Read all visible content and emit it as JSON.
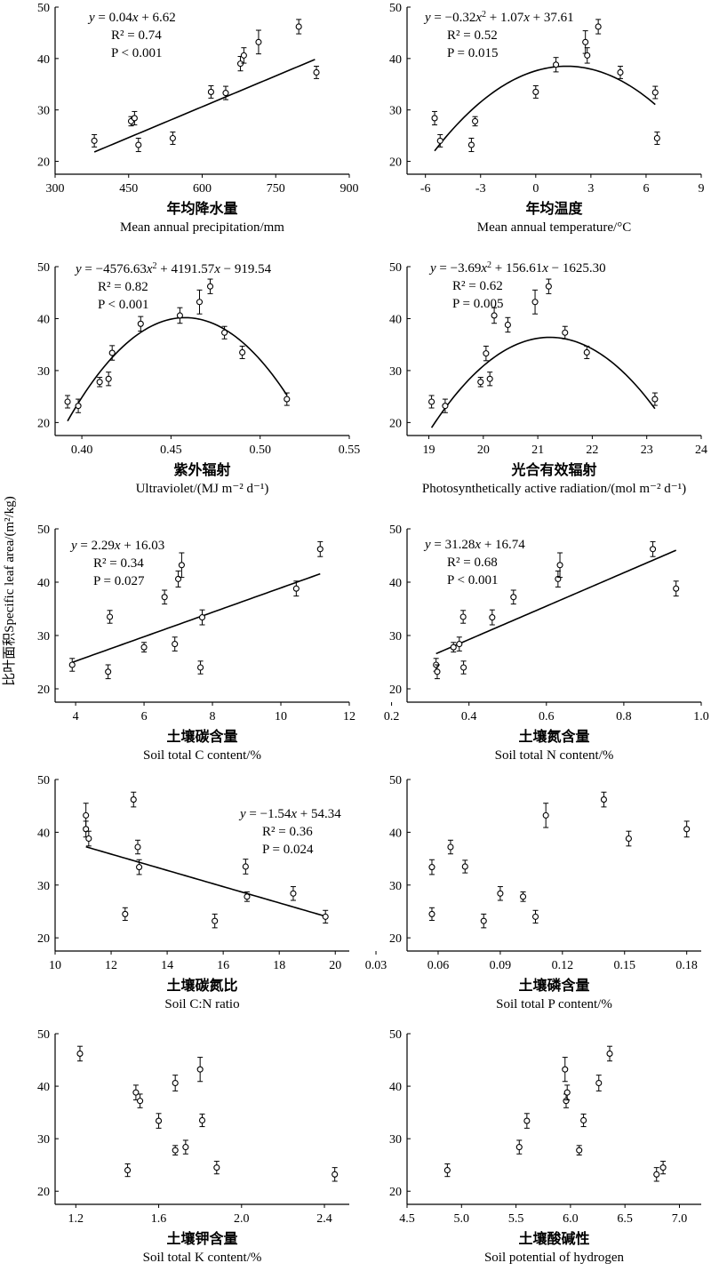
{
  "figure": {
    "ylabel": "比叶面积Specific leaf area/(m²/kg)"
  },
  "chart_data": [
    {
      "type": "scatter",
      "xlabel_zh": "年均降水量",
      "xlabel_en": "Mean annual precipitation/mm",
      "xticks": [
        "300",
        "450",
        "600",
        "750",
        "900"
      ],
      "yticks": [
        "20",
        "30",
        "40",
        "50"
      ],
      "xlim": [
        300,
        900
      ],
      "ylim": [
        17.5,
        50
      ],
      "points": [
        {
          "x": 380,
          "y": 24.0,
          "err": 1.2
        },
        {
          "x": 455,
          "y": 27.8,
          "err": 0.9
        },
        {
          "x": 462,
          "y": 28.4,
          "err": 1.3
        },
        {
          "x": 470,
          "y": 23.2,
          "err": 1.3
        },
        {
          "x": 540,
          "y": 24.5,
          "err": 1.2
        },
        {
          "x": 618,
          "y": 33.5,
          "err": 1.2
        },
        {
          "x": 648,
          "y": 33.3,
          "err": 1.3
        },
        {
          "x": 678,
          "y": 39.0,
          "err": 1.4
        },
        {
          "x": 685,
          "y": 40.6,
          "err": 1.5
        },
        {
          "x": 715,
          "y": 43.2,
          "err": 2.3
        },
        {
          "x": 797,
          "y": 46.2,
          "err": 1.4
        },
        {
          "x": 833,
          "y": 37.3,
          "err": 1.2
        }
      ],
      "fit": {
        "type": "linear",
        "coef": [
          0.04,
          6.62
        ],
        "x_range": [
          380,
          830
        ]
      },
      "annotation": {
        "eq": "y = 0.04x + 6.62",
        "r2": "R² = 0.74",
        "p": "P < 0.001",
        "eq_parts": [
          [
            "",
            "y"
          ],
          [
            " = 0.04",
            ""
          ],
          [
            "",
            "x"
          ],
          [
            " + 6.62",
            ""
          ]
        ]
      }
    },
    {
      "type": "scatter",
      "xlabel_zh": "年均温度",
      "xlabel_en": "Mean annual temperature/°C",
      "xticks": [
        "-6",
        "-3",
        "0",
        "3",
        "6",
        "9"
      ],
      "yticks": [
        "20",
        "30",
        "40",
        "50"
      ],
      "xlim": [
        -7,
        9
      ],
      "ylim": [
        17.5,
        50
      ],
      "points": [
        {
          "x": -5.5,
          "y": 28.4,
          "err": 1.3
        },
        {
          "x": -5.2,
          "y": 24.0,
          "err": 1.2
        },
        {
          "x": -3.5,
          "y": 23.2,
          "err": 1.3
        },
        {
          "x": -3.3,
          "y": 27.8,
          "err": 0.9
        },
        {
          "x": 0.0,
          "y": 33.5,
          "err": 1.2
        },
        {
          "x": 1.1,
          "y": 38.8,
          "err": 1.4
        },
        {
          "x": 2.7,
          "y": 43.2,
          "err": 2.2
        },
        {
          "x": 2.8,
          "y": 40.6,
          "err": 1.5
        },
        {
          "x": 3.4,
          "y": 46.2,
          "err": 1.4
        },
        {
          "x": 4.6,
          "y": 37.3,
          "err": 1.2
        },
        {
          "x": 6.5,
          "y": 33.4,
          "err": 1.2
        },
        {
          "x": 6.6,
          "y": 24.5,
          "err": 1.2
        }
      ],
      "fit": {
        "type": "quadratic",
        "coef": [
          -0.32,
          1.07,
          37.61
        ],
        "x_range": [
          -5.5,
          6.5
        ]
      },
      "annotation": {
        "eq": "y = −0.32x² + 1.07x + 37.61",
        "r2": "R² = 0.52",
        "p": "P = 0.015",
        "eq_parts": [
          [
            "",
            "y"
          ],
          [
            " = −0.32",
            ""
          ],
          [
            "",
            "x"
          ],
          [
            "²",
            ""
          ],
          [
            " + 1.07",
            ""
          ],
          [
            "",
            "x"
          ],
          [
            " + 37.61",
            ""
          ]
        ]
      }
    },
    {
      "type": "scatter",
      "xlabel_zh": "紫外辐射",
      "xlabel_en": "Ultraviolet/(MJ m⁻² d⁻¹)",
      "xticks": [
        "0.40",
        "0.45",
        "0.50",
        "0.55"
      ],
      "yticks": [
        "20",
        "30",
        "40",
        "50"
      ],
      "xlim": [
        0.385,
        0.55
      ],
      "ylim": [
        17.5,
        50
      ],
      "points": [
        {
          "x": 0.392,
          "y": 24.0,
          "err": 1.2
        },
        {
          "x": 0.398,
          "y": 23.2,
          "err": 1.3
        },
        {
          "x": 0.41,
          "y": 27.8,
          "err": 0.9
        },
        {
          "x": 0.415,
          "y": 28.4,
          "err": 1.3
        },
        {
          "x": 0.417,
          "y": 33.4,
          "err": 1.4
        },
        {
          "x": 0.433,
          "y": 39.0,
          "err": 1.4
        },
        {
          "x": 0.455,
          "y": 40.6,
          "err": 1.5
        },
        {
          "x": 0.466,
          "y": 43.2,
          "err": 2.3
        },
        {
          "x": 0.472,
          "y": 46.2,
          "err": 1.4
        },
        {
          "x": 0.48,
          "y": 37.3,
          "err": 1.2
        },
        {
          "x": 0.49,
          "y": 33.5,
          "err": 1.2
        },
        {
          "x": 0.515,
          "y": 24.5,
          "err": 1.2
        }
      ],
      "fit": {
        "type": "quadratic",
        "coef": [
          -4576.63,
          4191.57,
          -919.54
        ],
        "x_range": [
          0.392,
          0.515
        ]
      },
      "annotation": {
        "eq": "y = −4576.63x² + 4191.57x − 919.54",
        "r2": "R² = 0.82",
        "p": "P < 0.001",
        "eq_parts": [
          [
            "",
            "y"
          ],
          [
            " = −4576.63",
            ""
          ],
          [
            "",
            "x"
          ],
          [
            "²",
            ""
          ],
          [
            " + 4191.57",
            ""
          ],
          [
            "",
            "x"
          ],
          [
            " − 919.54",
            ""
          ]
        ]
      }
    },
    {
      "type": "scatter",
      "xlabel_zh": "光合有效辐射",
      "xlabel_en": "Photosynthetically active radiation/(mol m⁻² d⁻¹)",
      "xticks": [
        "19",
        "20",
        "21",
        "22",
        "23",
        "24"
      ],
      "yticks": [
        "20",
        "30",
        "40",
        "50"
      ],
      "xlim": [
        18.6,
        24
      ],
      "ylim": [
        17.5,
        50
      ],
      "points": [
        {
          "x": 19.05,
          "y": 24.0,
          "err": 1.2
        },
        {
          "x": 19.3,
          "y": 23.2,
          "err": 1.3
        },
        {
          "x": 19.95,
          "y": 27.8,
          "err": 0.9
        },
        {
          "x": 20.05,
          "y": 33.3,
          "err": 1.4
        },
        {
          "x": 20.12,
          "y": 28.4,
          "err": 1.3
        },
        {
          "x": 20.2,
          "y": 40.6,
          "err": 1.5
        },
        {
          "x": 20.45,
          "y": 38.8,
          "err": 1.4
        },
        {
          "x": 20.95,
          "y": 43.2,
          "err": 2.3
        },
        {
          "x": 21.2,
          "y": 46.2,
          "err": 1.4
        },
        {
          "x": 21.5,
          "y": 37.3,
          "err": 1.2
        },
        {
          "x": 21.9,
          "y": 33.5,
          "err": 1.2
        },
        {
          "x": 23.15,
          "y": 24.5,
          "err": 1.2
        }
      ],
      "fit": {
        "type": "quadratic",
        "coef": [
          -3.69,
          156.61,
          -1625.3
        ],
        "x_range": [
          19.05,
          23.15
        ]
      },
      "annotation": {
        "eq": "y = −3.69x² + 156.61x − 1625.30",
        "r2": "R² = 0.62",
        "p": "P = 0.005",
        "eq_parts": [
          [
            "",
            "y"
          ],
          [
            " = −3.69",
            ""
          ],
          [
            "",
            "x"
          ],
          [
            "²",
            ""
          ],
          [
            " + 156.61",
            ""
          ],
          [
            "",
            "x"
          ],
          [
            " − 1625.30",
            ""
          ]
        ]
      }
    },
    {
      "type": "scatter",
      "xlabel_zh": "土壤碳含量",
      "xlabel_en": "Soil total C content/%",
      "xticks": [
        "4",
        "6",
        "8",
        "10",
        "12"
      ],
      "yticks": [
        "20",
        "30",
        "40",
        "50"
      ],
      "xlim": [
        3.4,
        12
      ],
      "ylim": [
        17.5,
        50
      ],
      "points": [
        {
          "x": 3.9,
          "y": 24.5,
          "err": 1.2
        },
        {
          "x": 4.95,
          "y": 23.2,
          "err": 1.3
        },
        {
          "x": 5.0,
          "y": 33.5,
          "err": 1.2
        },
        {
          "x": 6.0,
          "y": 27.8,
          "err": 0.9
        },
        {
          "x": 6.6,
          "y": 37.2,
          "err": 1.3
        },
        {
          "x": 6.9,
          "y": 28.4,
          "err": 1.3
        },
        {
          "x": 7.0,
          "y": 40.6,
          "err": 1.5
        },
        {
          "x": 7.1,
          "y": 43.2,
          "err": 2.3
        },
        {
          "x": 7.65,
          "y": 24.0,
          "err": 1.2
        },
        {
          "x": 7.7,
          "y": 33.4,
          "err": 1.4
        },
        {
          "x": 10.45,
          "y": 38.8,
          "err": 1.4
        },
        {
          "x": 11.15,
          "y": 46.2,
          "err": 1.4
        }
      ],
      "fit": {
        "type": "linear",
        "coef": [
          2.29,
          16.03
        ],
        "x_range": [
          3.9,
          11.15
        ]
      },
      "annotation": {
        "eq": "y = 2.29x + 16.03",
        "r2": "R² = 0.34",
        "p": "P = 0.027",
        "eq_parts": [
          [
            "",
            "y"
          ],
          [
            " = 2.29",
            ""
          ],
          [
            "",
            "x"
          ],
          [
            " + 16.03",
            ""
          ]
        ]
      }
    },
    {
      "type": "scatter",
      "xlabel_zh": "土壤氮含量",
      "xlabel_en": "Soil total N content/%",
      "xticks": [
        "0.2",
        "0.4",
        "0.6",
        "0.8",
        "1.0"
      ],
      "yticks": [
        "20",
        "30",
        "40",
        "50"
      ],
      "xlim": [
        0.24,
        1.0
      ],
      "ylim": [
        17.5,
        50
      ],
      "points": [
        {
          "x": 0.315,
          "y": 24.5,
          "err": 1.2
        },
        {
          "x": 0.318,
          "y": 23.2,
          "err": 1.3
        },
        {
          "x": 0.36,
          "y": 27.8,
          "err": 0.9
        },
        {
          "x": 0.375,
          "y": 28.4,
          "err": 1.3
        },
        {
          "x": 0.385,
          "y": 33.5,
          "err": 1.2
        },
        {
          "x": 0.386,
          "y": 24.0,
          "err": 1.2
        },
        {
          "x": 0.46,
          "y": 33.4,
          "err": 1.4
        },
        {
          "x": 0.515,
          "y": 37.2,
          "err": 1.3
        },
        {
          "x": 0.63,
          "y": 40.6,
          "err": 1.5
        },
        {
          "x": 0.635,
          "y": 43.2,
          "err": 2.3
        },
        {
          "x": 0.875,
          "y": 46.2,
          "err": 1.4
        },
        {
          "x": 0.935,
          "y": 38.8,
          "err": 1.4
        }
      ],
      "fit": {
        "type": "linear",
        "coef": [
          31.28,
          16.74
        ],
        "x_range": [
          0.315,
          0.935
        ]
      },
      "annotation": {
        "eq": "y = 31.28x + 16.74",
        "r2": "R² = 0.68",
        "p": "P < 0.001",
        "eq_parts": [
          [
            "",
            "y"
          ],
          [
            " = 31.28",
            ""
          ],
          [
            "",
            "x"
          ],
          [
            " + 16.74",
            ""
          ]
        ]
      }
    },
    {
      "type": "scatter",
      "xlabel_zh": "土壤碳氮比",
      "xlabel_en": "Soil C:N ratio",
      "xticks": [
        "10",
        "12",
        "14",
        "16",
        "18",
        "20"
      ],
      "yticks": [
        "20",
        "30",
        "40",
        "50"
      ],
      "xlim": [
        10,
        20.5
      ],
      "ylim": [
        17.5,
        50
      ],
      "points": [
        {
          "x": 11.1,
          "y": 43.2,
          "err": 2.3
        },
        {
          "x": 11.1,
          "y": 40.6,
          "err": 1.5
        },
        {
          "x": 11.2,
          "y": 38.8,
          "err": 1.4
        },
        {
          "x": 12.5,
          "y": 24.5,
          "err": 1.2
        },
        {
          "x": 12.8,
          "y": 46.2,
          "err": 1.4
        },
        {
          "x": 12.95,
          "y": 37.2,
          "err": 1.3
        },
        {
          "x": 13.0,
          "y": 33.4,
          "err": 1.4
        },
        {
          "x": 15.7,
          "y": 23.2,
          "err": 1.3
        },
        {
          "x": 16.8,
          "y": 33.5,
          "err": 1.4
        },
        {
          "x": 16.85,
          "y": 27.8,
          "err": 0.9
        },
        {
          "x": 18.5,
          "y": 28.4,
          "err": 1.3
        },
        {
          "x": 19.65,
          "y": 24.0,
          "err": 1.2
        }
      ],
      "fit": {
        "type": "linear",
        "coef": [
          -1.54,
          54.34
        ],
        "x_range": [
          11.1,
          19.65
        ]
      },
      "annotation": {
        "eq": "y = −1.54x + 54.34",
        "r2": "R² = 0.36",
        "p": "P = 0.024",
        "eq_parts": [
          [
            "",
            "y"
          ],
          [
            " = −1.54",
            ""
          ],
          [
            "",
            "x"
          ],
          [
            " + 54.34",
            ""
          ]
        ]
      }
    },
    {
      "type": "scatter",
      "xlabel_zh": "土壤磷含量",
      "xlabel_en": "Soil total P content/%",
      "xticks": [
        "0.03",
        "0.06",
        "0.09",
        "0.12",
        "0.15",
        "0.18"
      ],
      "yticks": [
        "20",
        "30",
        "40",
        "50"
      ],
      "xlim": [
        0.045,
        0.187
      ],
      "ylim": [
        17.5,
        50
      ],
      "points": [
        {
          "x": 0.057,
          "y": 33.4,
          "err": 1.4
        },
        {
          "x": 0.057,
          "y": 24.5,
          "err": 1.2
        },
        {
          "x": 0.066,
          "y": 37.2,
          "err": 1.3
        },
        {
          "x": 0.073,
          "y": 33.5,
          "err": 1.2
        },
        {
          "x": 0.082,
          "y": 23.2,
          "err": 1.3
        },
        {
          "x": 0.09,
          "y": 28.4,
          "err": 1.3
        },
        {
          "x": 0.101,
          "y": 27.8,
          "err": 0.9
        },
        {
          "x": 0.107,
          "y": 24.0,
          "err": 1.2
        },
        {
          "x": 0.112,
          "y": 43.2,
          "err": 2.3
        },
        {
          "x": 0.14,
          "y": 46.2,
          "err": 1.4
        },
        {
          "x": 0.152,
          "y": 38.8,
          "err": 1.4
        },
        {
          "x": 0.18,
          "y": 40.6,
          "err": 1.5
        }
      ],
      "fit": null,
      "annotation": null
    },
    {
      "type": "scatter",
      "xlabel_zh": "土壤钾含量",
      "xlabel_en": "Soil total K content/%",
      "xticks": [
        "1.2",
        "1.6",
        "2.0",
        "2.4"
      ],
      "yticks": [
        "20",
        "30",
        "40",
        "50"
      ],
      "xlim": [
        1.1,
        2.52
      ],
      "ylim": [
        17.5,
        50
      ],
      "points": [
        {
          "x": 1.22,
          "y": 46.2,
          "err": 1.4
        },
        {
          "x": 1.45,
          "y": 24.0,
          "err": 1.2
        },
        {
          "x": 1.49,
          "y": 38.8,
          "err": 1.4
        },
        {
          "x": 1.51,
          "y": 37.2,
          "err": 1.3
        },
        {
          "x": 1.6,
          "y": 33.4,
          "err": 1.4
        },
        {
          "x": 1.68,
          "y": 40.6,
          "err": 1.5
        },
        {
          "x": 1.68,
          "y": 27.8,
          "err": 0.9
        },
        {
          "x": 1.73,
          "y": 28.4,
          "err": 1.3
        },
        {
          "x": 1.8,
          "y": 43.2,
          "err": 2.3
        },
        {
          "x": 1.81,
          "y": 33.5,
          "err": 1.2
        },
        {
          "x": 1.88,
          "y": 24.5,
          "err": 1.2
        },
        {
          "x": 2.45,
          "y": 23.2,
          "err": 1.3
        }
      ],
      "fit": null,
      "annotation": null
    },
    {
      "type": "scatter",
      "xlabel_zh": "土壤酸碱性",
      "xlabel_en": "Soil potential of hydrogen",
      "xticks": [
        "4.5",
        "5.0",
        "5.5",
        "6.0",
        "6.5",
        "7.0"
      ],
      "yticks": [
        "20",
        "30",
        "40",
        "50"
      ],
      "xlim": [
        4.5,
        7.2
      ],
      "ylim": [
        17.5,
        50
      ],
      "points": [
        {
          "x": 4.87,
          "y": 24.0,
          "err": 1.2
        },
        {
          "x": 5.53,
          "y": 28.4,
          "err": 1.3
        },
        {
          "x": 5.6,
          "y": 33.4,
          "err": 1.4
        },
        {
          "x": 5.95,
          "y": 43.2,
          "err": 2.3
        },
        {
          "x": 5.96,
          "y": 37.2,
          "err": 1.3
        },
        {
          "x": 5.97,
          "y": 38.8,
          "err": 1.4
        },
        {
          "x": 6.08,
          "y": 27.8,
          "err": 0.9
        },
        {
          "x": 6.12,
          "y": 33.5,
          "err": 1.2
        },
        {
          "x": 6.26,
          "y": 40.6,
          "err": 1.5
        },
        {
          "x": 6.36,
          "y": 46.2,
          "err": 1.4
        },
        {
          "x": 6.79,
          "y": 23.2,
          "err": 1.3
        },
        {
          "x": 6.85,
          "y": 24.5,
          "err": 1.2
        }
      ],
      "fit": null,
      "annotation": null
    }
  ]
}
